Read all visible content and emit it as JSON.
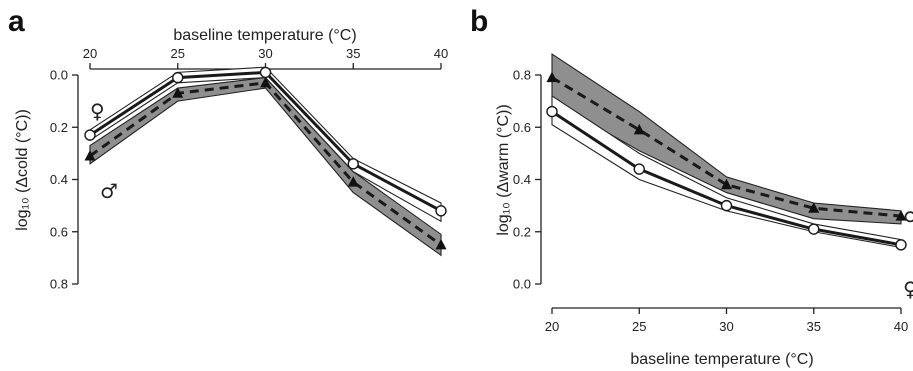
{
  "chart_data": [
    {
      "type": "line",
      "panel": "a",
      "xlabel": "baseline temperature (°C)",
      "ylabel": "log₁₀ (Δcold (°C))",
      "x": [
        20,
        25,
        30,
        35,
        40
      ],
      "xlim": [
        20,
        40
      ],
      "ylim": [
        0.0,
        0.8
      ],
      "y_inverted": true,
      "x_axis_position": "top",
      "xticks": [
        "20",
        "25",
        "30",
        "35",
        "40"
      ],
      "yticks": [
        "0.0",
        "0.2",
        "0.4",
        "0.6",
        "0.8"
      ],
      "series": [
        {
          "name": "♀",
          "marker": "circle",
          "line": "solid",
          "band_fill": "#ffffff",
          "values": [
            0.23,
            0.01,
            -0.01,
            0.34,
            0.52
          ],
          "lower": [
            0.21,
            -0.01,
            -0.03,
            0.32,
            0.49
          ],
          "upper": [
            0.25,
            0.03,
            0.01,
            0.37,
            0.56
          ]
        },
        {
          "name": "♂",
          "marker": "triangle",
          "line": "dashed",
          "band_fill": "#8f8f8f",
          "values": [
            0.31,
            0.07,
            0.03,
            0.41,
            0.65
          ],
          "lower": [
            0.27,
            0.05,
            0.01,
            0.37,
            0.61
          ],
          "upper": [
            0.34,
            0.1,
            0.05,
            0.45,
            0.69
          ]
        }
      ]
    },
    {
      "type": "line",
      "panel": "b",
      "xlabel": "baseline temperature (°C)",
      "ylabel": "log₁₀ (Δwarm (°C))",
      "x": [
        20,
        25,
        30,
        35,
        40
      ],
      "xlim": [
        20,
        40
      ],
      "ylim": [
        0.0,
        0.8
      ],
      "x_axis_position": "bottom",
      "xticks": [
        "20",
        "25",
        "30",
        "35",
        "40"
      ],
      "yticks": [
        "0.0",
        "0.2",
        "0.4",
        "0.6",
        "0.8"
      ],
      "series": [
        {
          "name": "♀",
          "marker": "circle",
          "line": "solid",
          "band_fill": "#ffffff",
          "values": [
            0.66,
            0.44,
            0.3,
            0.21,
            0.15
          ],
          "lower": [
            0.61,
            0.4,
            0.28,
            0.2,
            0.14
          ],
          "upper": [
            0.72,
            0.5,
            0.33,
            0.23,
            0.17
          ]
        },
        {
          "name": "♂",
          "marker": "triangle",
          "line": "dashed",
          "band_fill": "#8f8f8f",
          "values": [
            0.79,
            0.59,
            0.38,
            0.29,
            0.26
          ],
          "lower": [
            0.7,
            0.51,
            0.35,
            0.25,
            0.23
          ],
          "upper": [
            0.88,
            0.66,
            0.41,
            0.31,
            0.28
          ]
        }
      ]
    }
  ],
  "panels": {
    "a": {
      "letter": "a",
      "xlabel": "baseline temperature (°C)",
      "ylabel": "log₁₀ (Δcold (°C))",
      "female_symbol": "♀",
      "male_symbol": "♂"
    },
    "b": {
      "letter": "b",
      "xlabel": "baseline temperature (°C)",
      "ylabel": "log₁₀ (Δwarm (°C))",
      "male_symbol": "♂",
      "female_symbol": "♀"
    }
  }
}
